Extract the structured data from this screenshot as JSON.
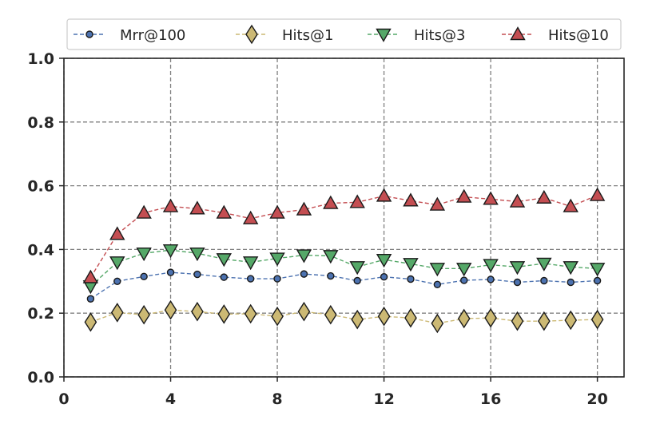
{
  "chart_data": {
    "type": "line",
    "title": "",
    "xlabel": "",
    "ylabel": "",
    "xlim": [
      0,
      21
    ],
    "ylim": [
      0.0,
      1.0
    ],
    "xticks": [
      0,
      4,
      8,
      12,
      16,
      20
    ],
    "xtick_labels": [
      "0",
      "4",
      "8",
      "12",
      "16",
      "20"
    ],
    "yticks": [
      0.0,
      0.2,
      0.4,
      0.6,
      0.8,
      1.0
    ],
    "ytick_labels": [
      "0.0",
      "0.2",
      "0.4",
      "0.6",
      "0.8",
      "1.0"
    ],
    "grid": true,
    "legend_position": "top",
    "x": [
      1,
      2,
      3,
      4,
      5,
      6,
      7,
      8,
      9,
      10,
      11,
      12,
      13,
      14,
      15,
      16,
      17,
      18,
      19,
      20
    ],
    "series": [
      {
        "name": "Mrr@100",
        "marker": "circle",
        "color": "#4c72b0",
        "values": [
          0.245,
          0.3,
          0.315,
          0.328,
          0.322,
          0.313,
          0.308,
          0.308,
          0.323,
          0.317,
          0.302,
          0.314,
          0.307,
          0.29,
          0.303,
          0.306,
          0.297,
          0.302,
          0.297,
          0.302
        ]
      },
      {
        "name": "Hits@1",
        "marker": "diamond",
        "color": "#ccb974",
        "values": [
          0.172,
          0.202,
          0.195,
          0.21,
          0.205,
          0.197,
          0.198,
          0.19,
          0.205,
          0.195,
          0.18,
          0.19,
          0.185,
          0.168,
          0.183,
          0.185,
          0.175,
          0.175,
          0.178,
          0.18
        ]
      },
      {
        "name": "Hits@3",
        "marker": "triangle-down",
        "color": "#55a868",
        "values": [
          0.285,
          0.36,
          0.388,
          0.398,
          0.388,
          0.37,
          0.36,
          0.372,
          0.382,
          0.38,
          0.345,
          0.368,
          0.355,
          0.34,
          0.34,
          0.352,
          0.345,
          0.356,
          0.345,
          0.34
        ]
      },
      {
        "name": "Hits@10",
        "marker": "triangle-up",
        "color": "#c44e52",
        "values": [
          0.312,
          0.448,
          0.515,
          0.535,
          0.528,
          0.515,
          0.497,
          0.515,
          0.525,
          0.545,
          0.548,
          0.568,
          0.553,
          0.54,
          0.565,
          0.558,
          0.55,
          0.562,
          0.535,
          0.57
        ]
      }
    ]
  }
}
